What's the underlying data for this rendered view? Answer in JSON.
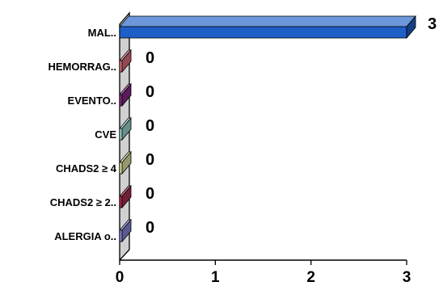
{
  "chart_data": {
    "type": "bar",
    "orientation": "horizontal",
    "style": "3d",
    "title": "",
    "xlabel": "",
    "ylabel": "",
    "xlim": [
      0,
      3
    ],
    "x_ticks": [
      "0",
      "1",
      "2",
      "3"
    ],
    "categories": [
      "MAL..",
      "HEMORRAG..",
      "EVENTO..",
      "CVE",
      "CHADS2 ≥ 4",
      "CHADS2 ≥ 2..",
      "ALERGIA o.."
    ],
    "series": [
      {
        "values": [
          3,
          0,
          0,
          0,
          0,
          0,
          0
        ],
        "value_labels": [
          "3",
          "0",
          "0",
          "0",
          "0",
          "0",
          "0"
        ]
      }
    ],
    "bar_colors": [
      "#1f5fc8",
      "#e07080",
      "#8a2a8a",
      "#9fdcd8",
      "#e8e8a8",
      "#b03050",
      "#8a8ae0"
    ],
    "grid": false,
    "legend": "none"
  }
}
